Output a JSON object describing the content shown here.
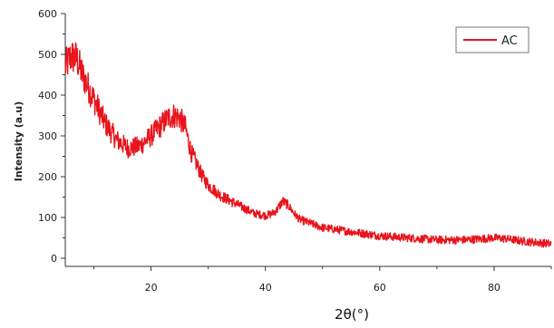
{
  "chart_data": {
    "type": "line",
    "title": "",
    "xlabel": "2θ(°)",
    "ylabel": "Intensity (a.u)",
    "xlim": [
      5,
      90
    ],
    "ylim": [
      -20,
      600
    ],
    "xticks": [
      20,
      40,
      60,
      80
    ],
    "yticks": [
      0,
      100,
      200,
      300,
      400,
      500,
      600
    ],
    "grid": false,
    "legend": {
      "position": "top-right"
    },
    "series": [
      {
        "name": "AC",
        "color": "#e8141c",
        "x": [
          5,
          6,
          7,
          8,
          10,
          12,
          14,
          16,
          18,
          20,
          22,
          23,
          24,
          25,
          26,
          27,
          28,
          29,
          30,
          32,
          34,
          36,
          38,
          40,
          41,
          42,
          43,
          44,
          45,
          46,
          48,
          50,
          55,
          60,
          65,
          70,
          75,
          78,
          80,
          82,
          85,
          88,
          90
        ],
        "y": [
          470,
          495,
          490,
          450,
          390,
          330,
          290,
          270,
          275,
          300,
          330,
          345,
          350,
          345,
          320,
          260,
          230,
          200,
          180,
          155,
          140,
          125,
          110,
          105,
          108,
          118,
          140,
          130,
          110,
          95,
          85,
          75,
          65,
          55,
          50,
          45,
          45,
          48,
          50,
          48,
          42,
          38,
          35
        ]
      }
    ]
  }
}
